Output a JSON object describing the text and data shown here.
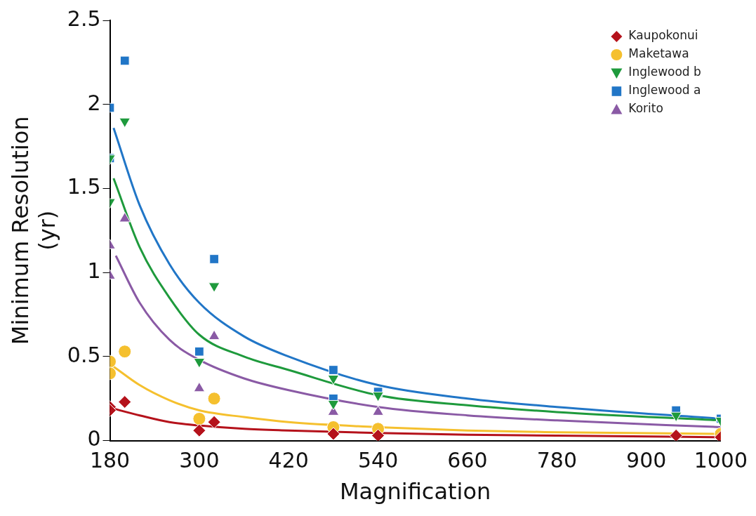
{
  "chart_data": {
    "type": "scatter",
    "xlabel": "Magnification",
    "ylabel": "Minimum Resolution (yr)",
    "xlim": [
      180,
      1000
    ],
    "xticks": [
      180,
      300,
      420,
      540,
      660,
      780,
      900,
      1000
    ],
    "ylim": [
      0,
      2.5
    ],
    "yticks": [
      0,
      0.5,
      1,
      1.5,
      2,
      2.5
    ],
    "grid": false,
    "legend": "top right",
    "series": [
      {
        "name": "Kaupokonui",
        "color": "#b5121b",
        "marker": "diamond",
        "x": [
          180,
          180,
          200,
          300,
          320,
          480,
          540,
          940,
          1000
        ],
        "values": [
          0.2,
          0.18,
          0.23,
          0.06,
          0.11,
          0.04,
          0.03,
          0.03,
          0.02
        ]
      },
      {
        "name": "Maketawa",
        "color": "#f5c02e",
        "marker": "circle",
        "x": [
          180,
          180,
          200,
          300,
          320,
          480,
          540,
          940,
          1000
        ],
        "values": [
          0.47,
          0.4,
          0.53,
          0.13,
          0.25,
          0.08,
          0.07,
          null,
          0.04
        ]
      },
      {
        "name": "Inglewood b",
        "color": "#1e9a3c",
        "marker": "triangle-down",
        "x": [
          180,
          180,
          200,
          300,
          320,
          480,
          480,
          540,
          940,
          1000
        ],
        "values": [
          1.68,
          1.42,
          1.9,
          0.47,
          0.92,
          0.37,
          0.22,
          0.27,
          0.15,
          0.12
        ]
      },
      {
        "name": "Inglewood a",
        "color": "#2176c7",
        "marker": "square",
        "x": [
          180,
          180,
          200,
          300,
          320,
          480,
          480,
          540,
          940,
          1000
        ],
        "values": [
          1.98,
          1.68,
          2.26,
          0.53,
          1.08,
          0.42,
          0.25,
          0.29,
          0.18,
          0.13
        ]
      },
      {
        "name": "Korito",
        "color": "#8a5aa5",
        "marker": "triangle",
        "x": [
          180,
          180,
          200,
          300,
          320,
          480,
          540
        ],
        "values": [
          1.16,
          0.98,
          1.32,
          0.31,
          0.62,
          0.17,
          0.17
        ]
      },
      {
        "type": "line",
        "color": "#b5121b",
        "marker": "none",
        "x": [
          185,
          220,
          260,
          300,
          360,
          420,
          540,
          660,
          780,
          1000
        ],
        "values": [
          0.19,
          0.15,
          0.11,
          0.09,
          0.07,
          0.06,
          0.045,
          0.035,
          0.03,
          0.02
        ]
      },
      {
        "type": "line",
        "color": "#f5c02e",
        "marker": "none",
        "x": [
          185,
          220,
          260,
          300,
          360,
          420,
          540,
          660,
          780,
          1000
        ],
        "values": [
          0.44,
          0.33,
          0.24,
          0.18,
          0.14,
          0.11,
          0.08,
          0.06,
          0.05,
          0.04
        ]
      },
      {
        "type": "line",
        "color": "#1e9a3c",
        "marker": "none",
        "x": [
          185,
          220,
          260,
          300,
          360,
          420,
          540,
          660,
          780,
          1000
        ],
        "values": [
          1.56,
          1.15,
          0.85,
          0.63,
          0.5,
          0.42,
          0.27,
          0.21,
          0.17,
          0.12
        ]
      },
      {
        "type": "line",
        "color": "#2176c7",
        "marker": "none",
        "x": [
          185,
          220,
          260,
          300,
          360,
          420,
          540,
          660,
          780,
          1000
        ],
        "values": [
          1.86,
          1.4,
          1.05,
          0.82,
          0.62,
          0.5,
          0.33,
          0.25,
          0.2,
          0.13
        ]
      },
      {
        "type": "line",
        "color": "#8a5aa5",
        "marker": "none",
        "x": [
          188,
          220,
          260,
          300,
          360,
          420,
          540,
          660,
          780,
          1000
        ],
        "values": [
          1.1,
          0.82,
          0.6,
          0.48,
          0.37,
          0.3,
          0.2,
          0.15,
          0.12,
          0.08
        ]
      }
    ]
  }
}
